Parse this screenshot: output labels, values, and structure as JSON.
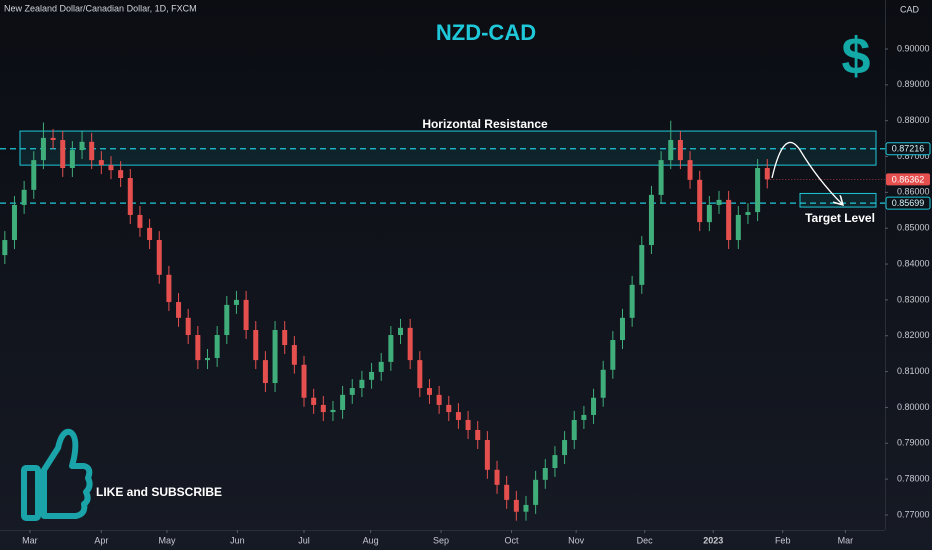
{
  "chart_data": {
    "type": "candlestick",
    "header": "New Zealand Dollar/Canadian Dollar, 1D, FXCM",
    "title": "NZD-CAD",
    "currency": "CAD",
    "icon_text": "$",
    "cta": "LIKE and SUBSCRIBE",
    "up_color": "#3fae7a",
    "down_color": "#e5504f",
    "open": [
      0.8425,
      0.8467,
      0.8565,
      0.8607,
      0.869,
      0.8752,
      0.8746,
      0.8668,
      0.8718,
      0.8741,
      0.869,
      0.8676,
      0.8662,
      0.864,
      0.8537,
      0.8501,
      0.8467,
      0.837,
      0.8294,
      0.825,
      0.8202,
      0.8132,
      0.8138,
      0.8202,
      0.8286,
      0.83,
      0.8216,
      0.8132,
      0.8068,
      0.8216,
      0.8174,
      0.8119,
      0.8027,
      0.8007,
      0.7987,
      0.7993,
      0.8035,
      0.8054,
      0.8077,
      0.8099,
      0.8127,
      0.8202,
      0.8222,
      0.8132,
      0.8054,
      0.8035,
      0.8007,
      0.7987,
      0.7965,
      0.7937,
      0.7909,
      0.7826,
      0.7784,
      0.7742,
      0.7709,
      0.7728,
      0.7798,
      0.7831,
      0.7867,
      0.7909,
      0.7965,
      0.7979,
      0.8027,
      0.8105,
      0.8188,
      0.825,
      0.8342,
      0.8453,
      0.8593,
      0.869,
      0.8746,
      0.869,
      0.8635,
      0.8517,
      0.8565,
      0.8579,
      0.8467,
      0.8537,
      0.8545,
      0.8668
    ],
    "high": [
      0.8492,
      0.859,
      0.8632,
      0.8715,
      0.8795,
      0.8777,
      0.8771,
      0.8743,
      0.877,
      0.8766,
      0.8715,
      0.8701,
      0.8687,
      0.8665,
      0.8562,
      0.8526,
      0.8492,
      0.8395,
      0.8319,
      0.8275,
      0.8227,
      0.8163,
      0.8227,
      0.8311,
      0.8325,
      0.8325,
      0.8241,
      0.8157,
      0.8241,
      0.8241,
      0.8199,
      0.8144,
      0.8052,
      0.8032,
      0.8018,
      0.806,
      0.8079,
      0.8102,
      0.8124,
      0.8152,
      0.8227,
      0.8247,
      0.8247,
      0.8157,
      0.8079,
      0.806,
      0.8032,
      0.8012,
      0.799,
      0.7962,
      0.7934,
      0.7851,
      0.7809,
      0.7767,
      0.7753,
      0.7823,
      0.7856,
      0.7892,
      0.7934,
      0.799,
      0.8004,
      0.8052,
      0.813,
      0.8213,
      0.8275,
      0.8367,
      0.8478,
      0.8618,
      0.8715,
      0.88,
      0.8771,
      0.8715,
      0.866,
      0.859,
      0.8604,
      0.8604,
      0.8562,
      0.857,
      0.8693,
      0.8693
    ],
    "low": [
      0.84,
      0.8442,
      0.854,
      0.8582,
      0.8665,
      0.8721,
      0.8643,
      0.8643,
      0.8693,
      0.8665,
      0.8651,
      0.8637,
      0.8615,
      0.8512,
      0.8476,
      0.8442,
      0.8345,
      0.8269,
      0.8225,
      0.8177,
      0.8107,
      0.8107,
      0.8113,
      0.8177,
      0.8261,
      0.8191,
      0.8107,
      0.8043,
      0.8043,
      0.8149,
      0.8094,
      0.8002,
      0.7982,
      0.7962,
      0.7962,
      0.7968,
      0.801,
      0.8029,
      0.8052,
      0.8074,
      0.8102,
      0.8177,
      0.8107,
      0.8029,
      0.801,
      0.7982,
      0.7962,
      0.794,
      0.7912,
      0.7884,
      0.7801,
      0.7759,
      0.7717,
      0.7684,
      0.7684,
      0.7703,
      0.7773,
      0.7806,
      0.7842,
      0.7884,
      0.794,
      0.7954,
      0.8002,
      0.808,
      0.8163,
      0.8225,
      0.8317,
      0.8428,
      0.8568,
      0.8665,
      0.8665,
      0.861,
      0.8492,
      0.8492,
      0.854,
      0.8442,
      0.8442,
      0.8512,
      0.852,
      0.8611
    ],
    "close": [
      0.8467,
      0.8565,
      0.8607,
      0.869,
      0.8752,
      0.8746,
      0.8668,
      0.8718,
      0.8741,
      0.869,
      0.8676,
      0.8662,
      0.864,
      0.8537,
      0.8501,
      0.8467,
      0.837,
      0.8294,
      0.825,
      0.8202,
      0.8132,
      0.8138,
      0.8202,
      0.8286,
      0.83,
      0.8216,
      0.8132,
      0.8068,
      0.8216,
      0.8174,
      0.8119,
      0.8027,
      0.8007,
      0.7987,
      0.7993,
      0.8035,
      0.8054,
      0.8077,
      0.8099,
      0.8127,
      0.8202,
      0.8222,
      0.8132,
      0.8054,
      0.8035,
      0.8007,
      0.7987,
      0.7965,
      0.7937,
      0.7909,
      0.7826,
      0.7784,
      0.7742,
      0.7709,
      0.7728,
      0.7798,
      0.7831,
      0.7867,
      0.7909,
      0.7965,
      0.7979,
      0.8027,
      0.8105,
      0.8188,
      0.825,
      0.8342,
      0.8453,
      0.8593,
      0.869,
      0.8746,
      0.869,
      0.8635,
      0.8517,
      0.8565,
      0.8579,
      0.8467,
      0.8537,
      0.8545,
      0.8668,
      0.86362
    ],
    "xlim": [
      -0.5,
      91.2
    ],
    "xticks": [
      {
        "value": 2.6,
        "label": "Mar"
      },
      {
        "value": 10.0,
        "label": "Apr"
      },
      {
        "value": 16.8,
        "label": "May"
      },
      {
        "value": 24.1,
        "label": "Jun"
      },
      {
        "value": 31.0,
        "label": "Jul"
      },
      {
        "value": 37.9,
        "label": "Aug"
      },
      {
        "value": 45.2,
        "label": "Sep"
      },
      {
        "value": 52.5,
        "label": "Oct"
      },
      {
        "value": 59.2,
        "label": "Nov"
      },
      {
        "value": 66.3,
        "label": "Dec"
      },
      {
        "value": 73.4,
        "label": "2023"
      },
      {
        "value": 80.6,
        "label": "Feb"
      },
      {
        "value": 87.1,
        "label": "Mar"
      }
    ],
    "ylim": [
      0.7658,
      0.91367
    ],
    "yticks": [
      {
        "value": 0.77,
        "label": "0.77000"
      },
      {
        "value": 0.78,
        "label": "0.78000"
      },
      {
        "value": 0.79,
        "label": "0.79000"
      },
      {
        "value": 0.8,
        "label": "0.80000"
      },
      {
        "value": 0.81,
        "label": "0.81000"
      },
      {
        "value": 0.82,
        "label": "0.82000"
      },
      {
        "value": 0.83,
        "label": "0.83000"
      },
      {
        "value": 0.84,
        "label": "0.84000"
      },
      {
        "value": 0.85,
        "label": "0.85000"
      },
      {
        "value": 0.86,
        "label": "0.86000"
      },
      {
        "value": 0.87,
        "label": "0.87000"
      },
      {
        "value": 0.88,
        "label": "0.88000"
      },
      {
        "value": 0.89,
        "label": "0.89000"
      },
      {
        "value": 0.9,
        "label": "0.90000"
      }
    ],
    "resistance": {
      "label": "Horizontal Resistance",
      "top": 0.8771,
      "bottom": 0.8676,
      "level": 0.87216
    },
    "target": {
      "label": "Target Level",
      "top": 0.8597,
      "bottom": 0.8559,
      "level": 0.85699
    }
  }
}
